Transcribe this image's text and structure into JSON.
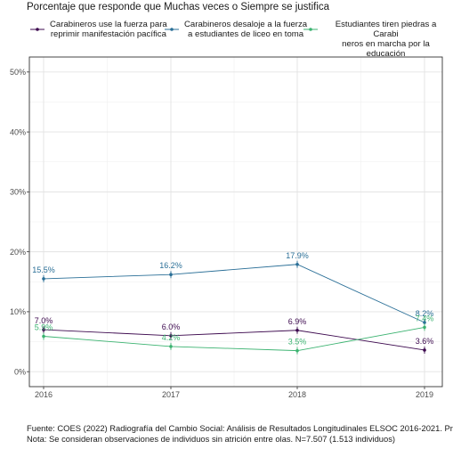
{
  "chart_data": {
    "type": "line",
    "title": "Porcentaje que responde que Muchas veces o Siempre se justifica",
    "x": [
      "2016",
      "2017",
      "2018",
      "2019"
    ],
    "ylim": [
      -2.5,
      52.5
    ],
    "yticks": [
      0,
      10,
      20,
      30,
      40,
      50
    ],
    "yticklabels": [
      "0%",
      "10%",
      "20%",
      "30%",
      "40%",
      "50%"
    ],
    "grid": true,
    "legend_position": "top",
    "series": [
      {
        "name": "Carabineros use la fuerza para\nreprimir manifestación pacífica",
        "color": "#3d0a4f",
        "values": [
          7.0,
          6.0,
          6.9,
          3.6
        ],
        "labels": [
          "7.0%",
          "6.0%",
          "6.9%",
          "3.6%"
        ]
      },
      {
        "name": "Carabineros desaloje a la fuerza\na estudiantes de liceo en toma",
        "color": "#2a6f97",
        "values": [
          15.5,
          16.2,
          17.9,
          8.2
        ],
        "labels": [
          "15.5%",
          "16.2%",
          "17.9%",
          "8.2%"
        ]
      },
      {
        "name": "Estudiantes tiren piedras a Carabi\nneros en marcha por la educación",
        "color": "#3cb371",
        "values": [
          5.9,
          4.2,
          3.5,
          7.4
        ],
        "labels": [
          "5.9%",
          "4.2%",
          "3.5%",
          "7.4%"
        ]
      }
    ]
  },
  "caption": {
    "source": "Fuente: COES (2022) Radiografía del Cambio Social: Análisis de Resultados Longitudinales ELSOC 2016-2021. Pr",
    "note": "Nota: Se consideran observaciones de individuos sin atrición entre olas. N=7.507 (1.513 individuos)"
  }
}
